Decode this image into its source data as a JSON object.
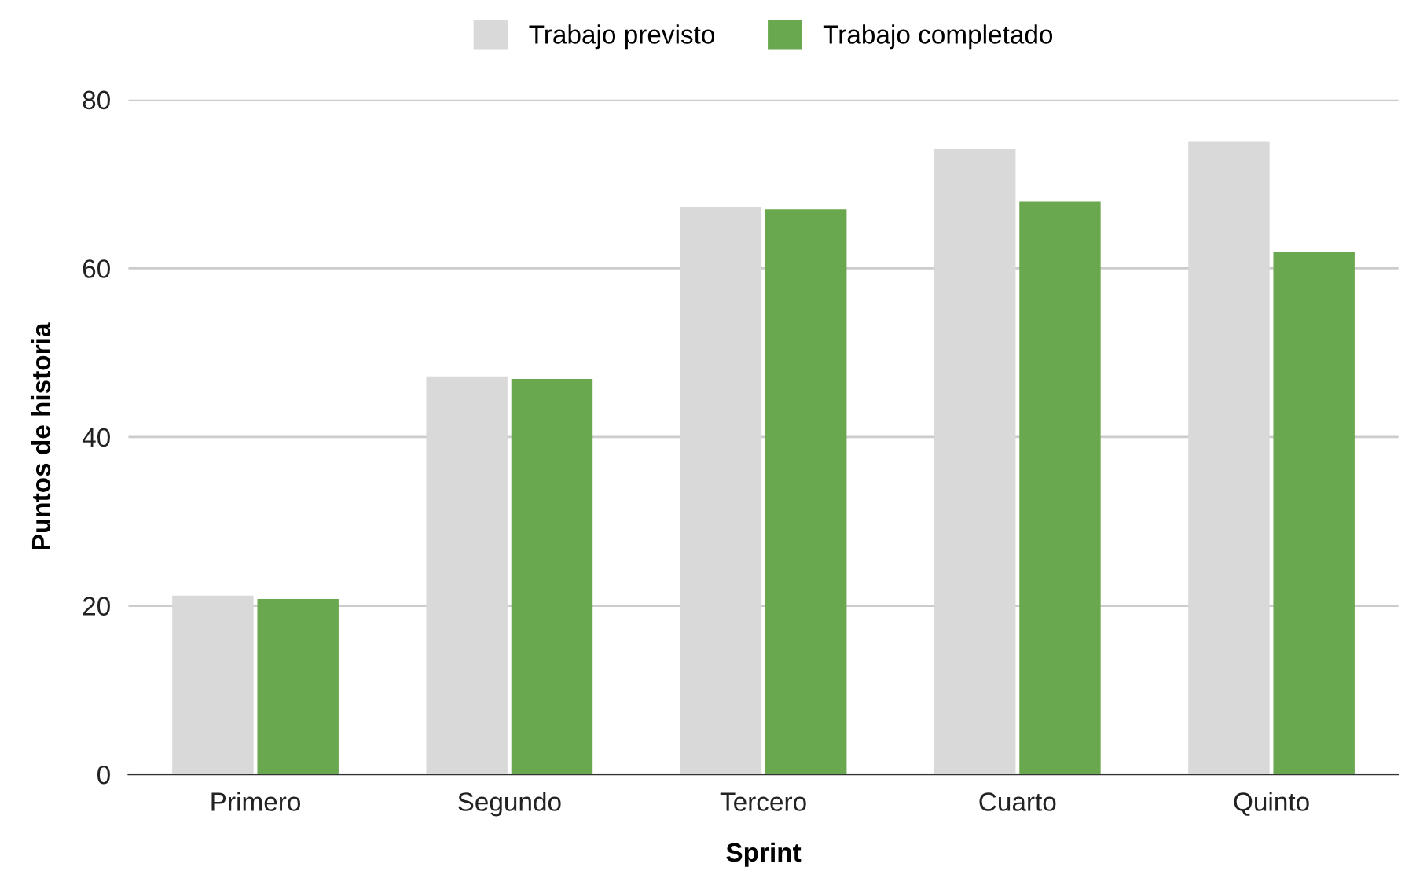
{
  "chart_data": {
    "type": "bar",
    "xlabel": "Sprint",
    "ylabel": "Puntos de historia",
    "categories": [
      "Primero",
      "Segundo",
      "Tercero",
      "Cuarto",
      "Quinto"
    ],
    "series": [
      {
        "name": "Trabajo previsto",
        "color": "#d9d9d9",
        "values": [
          21.2,
          47.2,
          67.3,
          74.2,
          75
        ]
      },
      {
        "name": "Trabajo completado",
        "color": "#6aa84f",
        "values": [
          20.8,
          46.9,
          67,
          67.9,
          61.9
        ]
      }
    ],
    "ylim": [
      0,
      80
    ],
    "yticks": [
      0,
      20,
      40,
      60,
      80
    ],
    "grid": "y",
    "legend": "top"
  }
}
